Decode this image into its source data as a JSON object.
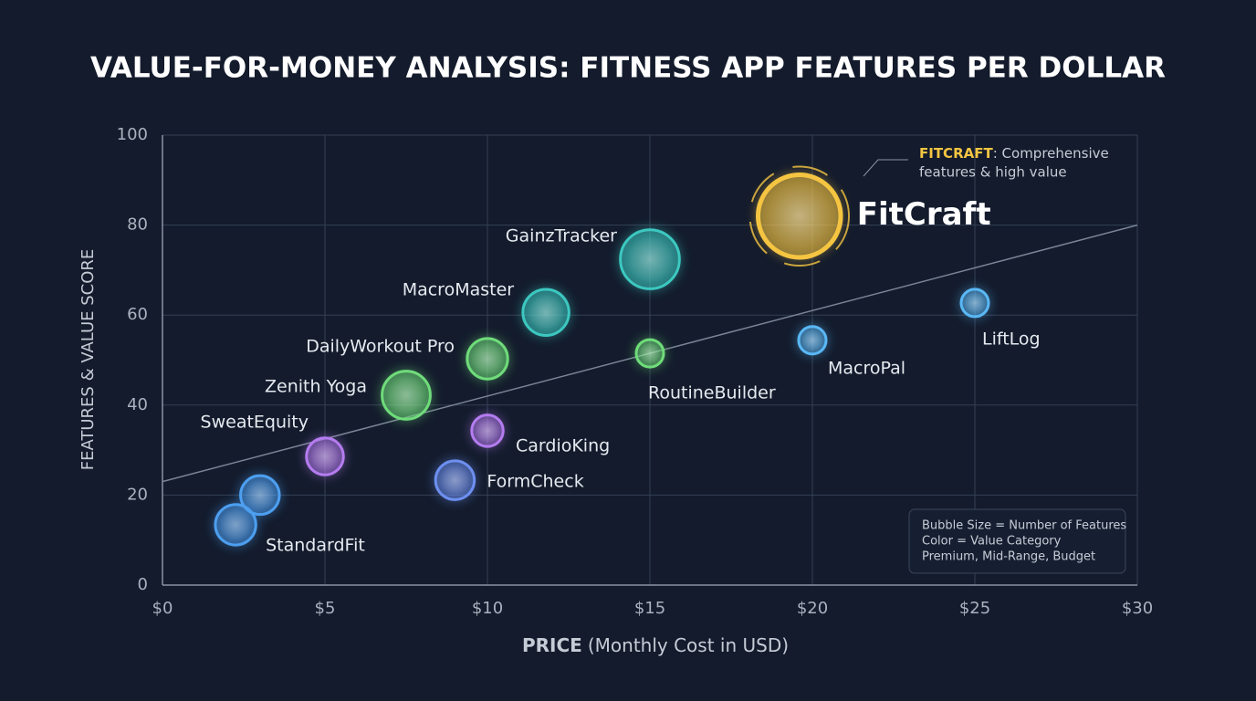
{
  "chart_data": {
    "type": "bubble",
    "title": "VALUE-FOR-MONEY ANALYSIS: FITNESS APP FEATURES PER DOLLAR",
    "x_label_bold": "PRICE",
    "x_label": "(Monthly Cost in USD)",
    "y_label": "FEATURES & VALUE SCORE",
    "xlim": [
      0,
      30
    ],
    "xticks": [
      {
        "value": 0,
        "label": "$0"
      },
      {
        "value": 5,
        "label": "$5"
      },
      {
        "value": 10,
        "label": "$10"
      },
      {
        "value": 15,
        "label": "$15"
      },
      {
        "value": 20,
        "label": "$20"
      },
      {
        "value": 25,
        "label": "$25"
      },
      {
        "value": 30,
        "label": "$30"
      }
    ],
    "ylim": [
      0,
      100
    ],
    "yticks": [
      0,
      20,
      40,
      60,
      80,
      100
    ],
    "grid": true,
    "names": [
      "StandardFit",
      null,
      "SweatEquity",
      "Zenith Yoga",
      "FormCheck",
      "CardioKing",
      "DailyWorkout Pro",
      "MacroMaster",
      "GainzTracker",
      "RoutineBuilder",
      "MacroPal",
      "LiftLog",
      "FitCraft"
    ],
    "x": [
      2.25,
      3,
      5,
      7.5,
      9,
      10,
      10,
      11.8,
      15,
      15,
      20,
      25,
      19.6
    ],
    "values": [
      13.4,
      20,
      28.6,
      42.2,
      23.3,
      34.3,
      50.3,
      60.6,
      72.4,
      51.5,
      54.4,
      62.7,
      82
    ],
    "sizes": [
      48,
      44,
      40,
      68,
      44,
      29,
      48,
      62,
      102,
      22,
      22,
      22,
      200
    ],
    "colors": [
      "#4d9ff0",
      "#4d9ff0",
      "#b57cf0",
      "#6fdc7a",
      "#6d8ff0",
      "#b57cf0",
      "#6fdc7a",
      "#3cc8c0",
      "#3cc8c0",
      "#6fdc7a",
      "#5ab8f5",
      "#5ab8f5",
      "#f5c542"
    ],
    "trendline": {
      "x": [
        0,
        30
      ],
      "y": [
        23,
        80
      ]
    },
    "annotation": {
      "highlight": "FITCRAFT",
      "lines": [
        ": Comprehensive",
        "features & high value"
      ]
    },
    "legend": [
      "Bubble Size = Number of Features",
      "Color = Value Category",
      "Premium, Mid-Range, Budget"
    ]
  }
}
